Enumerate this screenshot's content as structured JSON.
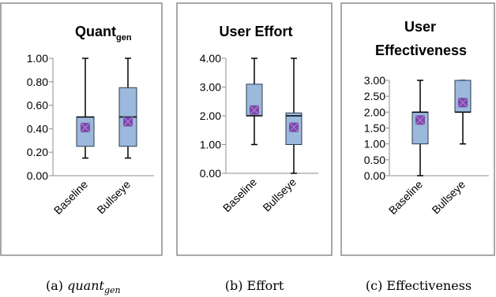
{
  "chart_data": [
    {
      "type": "box",
      "title_main": "Quant",
      "title_sub": "gen",
      "yticks": [
        "0.00",
        "0.20",
        "0.40",
        "0.60",
        "0.80",
        "1.00"
      ],
      "ylim": [
        0,
        1
      ],
      "categories": [
        "Baseline",
        "Bullseye"
      ],
      "boxes": [
        {
          "min": 0.15,
          "q1": 0.25,
          "median": 0.5,
          "q3": 0.5,
          "max": 1.0,
          "mean": 0.41
        },
        {
          "min": 0.15,
          "q1": 0.25,
          "median": 0.5,
          "q3": 0.75,
          "max": 1.0,
          "mean": 0.46
        }
      ],
      "caption_prefix": "(a)",
      "caption_main": "quant",
      "caption_sub": "gen"
    },
    {
      "type": "box",
      "title_lines": [
        "User Effort"
      ],
      "yticks": [
        "0.00",
        "1.00",
        "2.00",
        "3.00",
        "4.00"
      ],
      "ylim": [
        0,
        4
      ],
      "categories": [
        "Baseline",
        "Bullseye"
      ],
      "boxes": [
        {
          "min": 1.0,
          "q1": 2.0,
          "median": 2.0,
          "q3": 3.1,
          "max": 4.0,
          "mean": 2.2
        },
        {
          "min": 0.0,
          "q1": 1.0,
          "median": 2.0,
          "q3": 2.1,
          "max": 4.0,
          "mean": 1.6
        }
      ],
      "caption": "(b) Effort"
    },
    {
      "type": "box",
      "title_lines": [
        "User",
        "Effectiveness"
      ],
      "yticks": [
        "0.00",
        "0.50",
        "1.00",
        "1.50",
        "2.00",
        "2.50",
        "3.00"
      ],
      "ylim": [
        0,
        3
      ],
      "categories": [
        "Baseline",
        "Bullseye"
      ],
      "boxes": [
        {
          "min": 0.0,
          "q1": 1.0,
          "median": 2.0,
          "q3": 2.0,
          "max": 3.0,
          "mean": 1.75
        },
        {
          "min": 1.0,
          "q1": 2.0,
          "median": 2.0,
          "q3": 3.0,
          "max": 3.0,
          "mean": 2.3
        }
      ],
      "caption": "(c) Effectiveness"
    }
  ],
  "colors": {
    "box_fill": "#9ab9dd",
    "box_stroke": "#2f3b4c",
    "mean_fill": "#7a4aa6",
    "mean_x": "#b07ad6",
    "frame": "#8c8c8c"
  }
}
